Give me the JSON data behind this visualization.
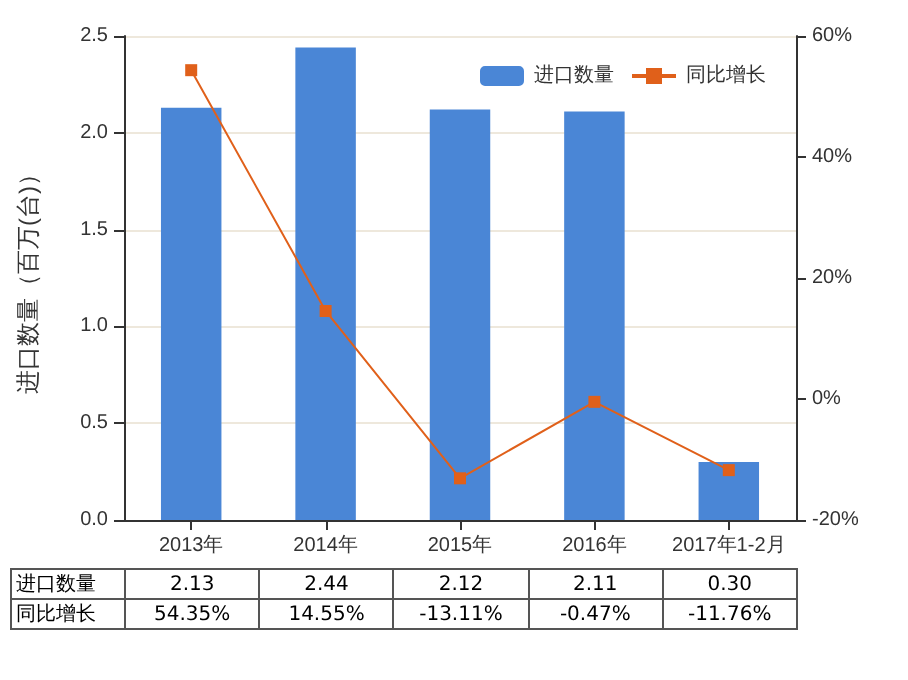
{
  "chart_data": {
    "type": "bar",
    "ylabel": "进口数量（百万(台)）",
    "categories": [
      "2013年",
      "2014年",
      "2015年",
      "2016年",
      "2017年1-2月"
    ],
    "series": [
      {
        "name": "进口数量",
        "color": "#4a86d6",
        "values": [
          2.13,
          2.44,
          2.12,
          2.11,
          0.3
        ],
        "value_labels": [
          "2.13",
          "2.44",
          "2.12",
          "2.11",
          "0.30"
        ]
      },
      {
        "name": "同比增长",
        "type": "line",
        "axis": "y2",
        "color": "#e0601a",
        "values": [
          54.35,
          14.55,
          -13.11,
          -0.47,
          -11.76
        ],
        "value_labels": [
          "54.35%",
          "14.55%",
          "-13.11%",
          "-0.47%",
          "-11.76%"
        ]
      }
    ],
    "ylim": [
      0,
      2.5
    ],
    "yticks": [
      "0.0",
      "0.5",
      "1.0",
      "1.5",
      "2.0",
      "2.5"
    ],
    "y2lim": [
      -20,
      60
    ],
    "y2ticks": [
      {
        "value": -20,
        "label": "-20%"
      },
      {
        "value": 0,
        "label": "0%"
      },
      {
        "value": 20,
        "label": "20%"
      },
      {
        "value": 40,
        "label": "40%"
      },
      {
        "value": 60,
        "label": "60%"
      }
    ],
    "grid": "y",
    "legend": "top right",
    "marker": "square"
  }
}
